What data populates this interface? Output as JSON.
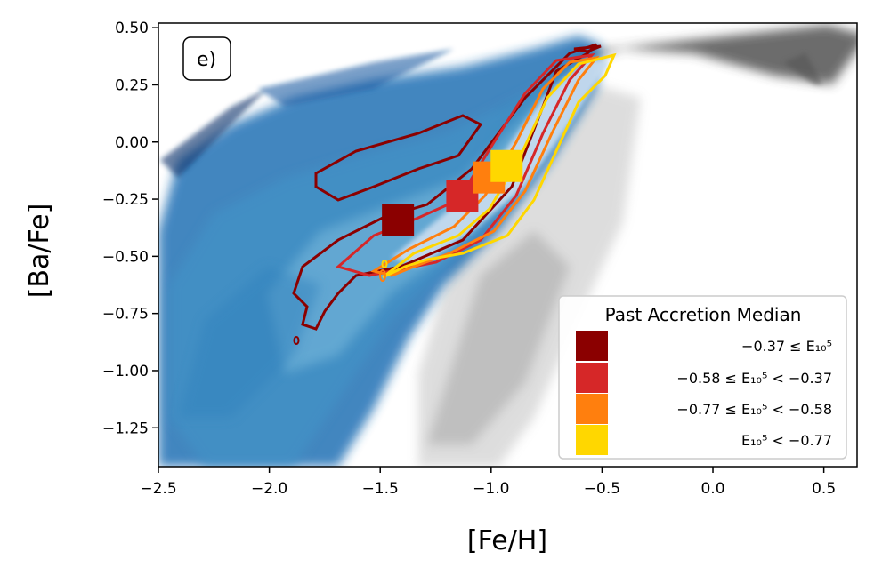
{
  "chart_data": {
    "type": "scatter",
    "panel_label": "e)",
    "xlabel": "[Fe/H]",
    "ylabel": "[Ba/Fe]",
    "xlim": [
      -2.5,
      0.65
    ],
    "ylim": [
      -1.42,
      0.52
    ],
    "xticks": [
      -2.5,
      -2.0,
      -1.5,
      -1.0,
      -0.5,
      0.0,
      0.5
    ],
    "xtick_labels": [
      "−2.5",
      "−2.0",
      "−1.5",
      "−1.0",
      "−0.5",
      "0.0",
      "0.5"
    ],
    "yticks": [
      0.5,
      0.25,
      0.0,
      -0.25,
      -0.5,
      -0.75,
      -1.0,
      -1.25
    ],
    "ytick_labels": [
      "0.50",
      "0.25",
      "0.00",
      "−0.25",
      "−0.50",
      "−0.75",
      "−1.00",
      "−1.25"
    ],
    "grid": false,
    "legend": {
      "title": "Past Accretion Median",
      "placement": "lower-right",
      "entries": [
        "−0.37 ≤ E₁₀⁵",
        "−0.58 ≤ E₁₀⁵ < −0.37",
        "−0.77 ≤ E₁₀⁵ < −0.58",
        "E₁₀⁵ < −0.77"
      ]
    },
    "series": [
      {
        "x": -1.42,
        "y": -0.34,
        "color": "#8b0000"
      },
      {
        "x": -1.13,
        "y": -0.235,
        "color": "#d62728"
      },
      {
        "x": -1.01,
        "y": -0.155,
        "color": "#ff7f0e"
      },
      {
        "x": -0.93,
        "y": -0.105,
        "color": "#ffd700"
      }
    ],
    "background_density": "2D histogram of [Ba/Fe] vs [Fe/H]; gray for full sample, blue for selected stars",
    "colors": {
      "series_1": "#8b0000",
      "series_2": "#d62728",
      "series_3": "#ff7f0e",
      "series_4": "#ffd700",
      "hist_dark_blue": "#08306b",
      "hist_light_blue": "#c6dbef",
      "hist_gray": "#9a9a9a"
    }
  }
}
